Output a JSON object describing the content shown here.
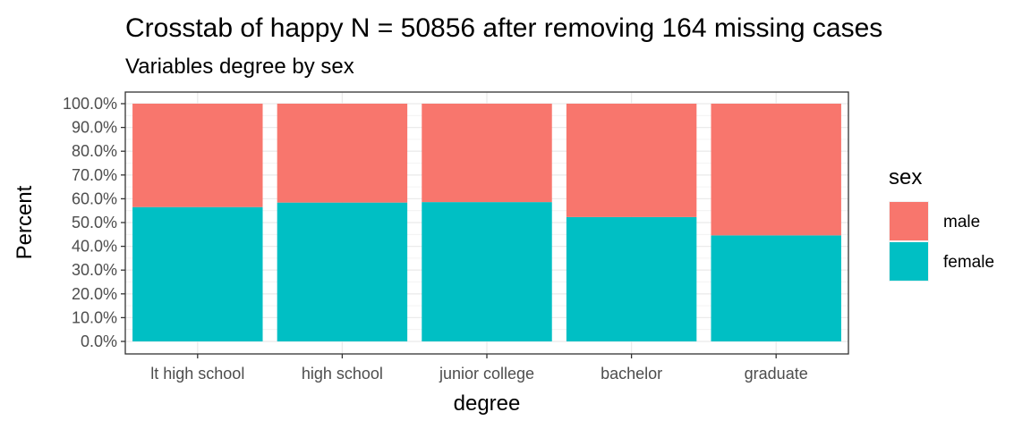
{
  "chart_data": {
    "type": "bar",
    "stacked": true,
    "title": "Crosstab of happy N = 50856 after removing 164 missing cases",
    "subtitle": "Variables degree by sex",
    "xlabel": "degree",
    "ylabel": "Percent",
    "categories": [
      "lt high school",
      "high school",
      "junior college",
      "bachelor",
      "graduate"
    ],
    "series": [
      {
        "name": "female",
        "values": [
          56.5,
          58.4,
          58.6,
          52.3,
          44.6
        ],
        "color": "#00BFC4"
      },
      {
        "name": "male",
        "values": [
          43.5,
          41.6,
          41.4,
          47.7,
          55.4
        ],
        "color": "#F8766D"
      }
    ],
    "ylim": [
      0,
      100
    ],
    "yticks": [
      "0.0%",
      "10.0%",
      "20.0%",
      "30.0%",
      "40.0%",
      "50.0%",
      "60.0%",
      "70.0%",
      "80.0%",
      "90.0%",
      "100.0%"
    ],
    "grid": true,
    "legend": {
      "title": "sex",
      "position": "right",
      "items": [
        {
          "label": "male",
          "color": "#F8766D"
        },
        {
          "label": "female",
          "color": "#00BFC4"
        }
      ]
    }
  }
}
